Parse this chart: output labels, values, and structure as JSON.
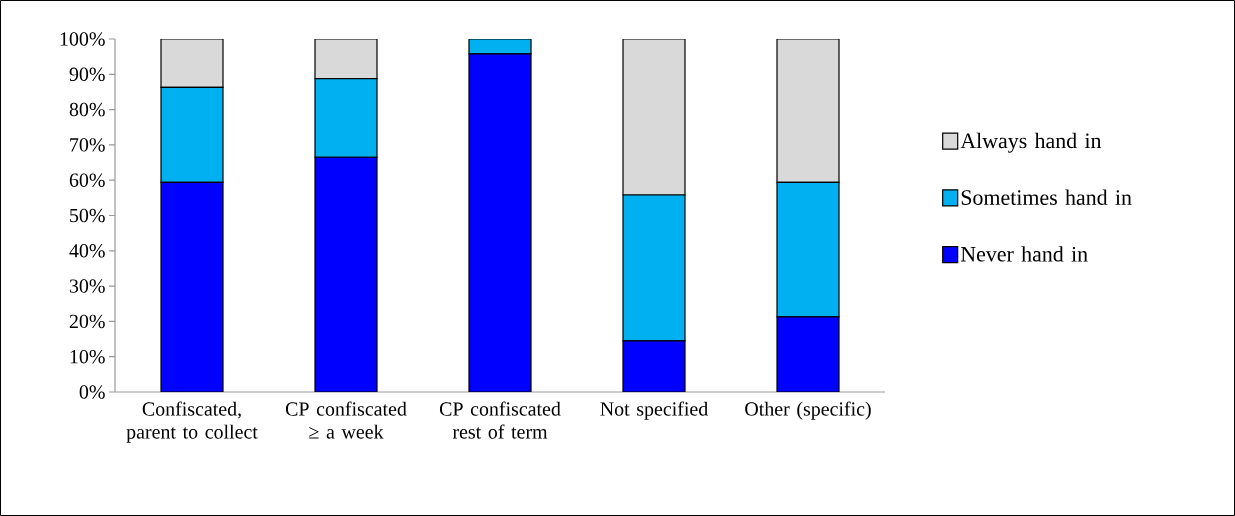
{
  "chart_data": {
    "type": "bar",
    "stacked": true,
    "categories": [
      "Confiscated, parent to collect",
      "CP confiscated ≥ a week",
      "CP confiscated rest of term",
      "Not specified",
      "Other (specific)"
    ],
    "series": [
      {
        "name": "Never hand in",
        "color": "#0000ff",
        "values": [
          59.4,
          66.5,
          95.8,
          14.5,
          21.3
        ]
      },
      {
        "name": "Sometimes hand in",
        "color": "#00b0f0",
        "values": [
          26.9,
          22.3,
          4.2,
          41.3,
          38.1
        ]
      },
      {
        "name": "Always hand in",
        "color": "#d9d9d9",
        "values": [
          13.7,
          11.2,
          0,
          44.2,
          40.6
        ]
      }
    ],
    "ylim": [
      0,
      100
    ],
    "yticks": [
      {
        "value": 0,
        "label": "0%"
      },
      {
        "value": 10,
        "label": "10%"
      },
      {
        "value": 20,
        "label": "20%"
      },
      {
        "value": 30,
        "label": "30%"
      },
      {
        "value": 40,
        "label": "40%"
      },
      {
        "value": 50,
        "label": "50%"
      },
      {
        "value": 60,
        "label": "60%"
      },
      {
        "value": 70,
        "label": "70%"
      },
      {
        "value": 80,
        "label": "80%"
      },
      {
        "value": 90,
        "label": "90%"
      },
      {
        "value": 100,
        "label": "100%"
      }
    ],
    "legend": "right"
  }
}
